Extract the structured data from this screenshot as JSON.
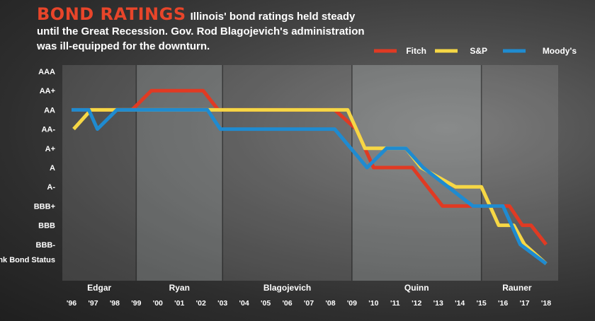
{
  "header": {
    "title": "BOND RATINGS",
    "subtitle": "Illinois' bond ratings held steady until the Great Recession. Gov. Rod Blagojevich's administration was ill-equipped for the downturn."
  },
  "chart_data": {
    "type": "line",
    "title": "BOND RATINGS",
    "y_categories": [
      "AAA",
      "AA+",
      "AA",
      "AA-",
      "A+",
      "A",
      "A-",
      "BBB+",
      "BBB",
      "BBB-",
      "Junk Bond Status"
    ],
    "x_ticks": [
      "'96",
      "'97",
      "'98",
      "'99",
      "'00",
      "'01",
      "'02",
      "'03",
      "'04",
      "'05",
      "'06",
      "'07",
      "'08",
      "'09",
      "'10",
      "'11",
      "'12",
      "'13",
      "'14",
      "'15",
      "'16",
      "'17",
      "'18"
    ],
    "xlim": [
      1996,
      2018.3
    ],
    "ylim_index": [
      0,
      10
    ],
    "governors": [
      {
        "name": "Edgar",
        "start": 1996,
        "end": 1999
      },
      {
        "name": "Ryan",
        "start": 1999,
        "end": 2003
      },
      {
        "name": "Blagojevich",
        "start": 2003,
        "end": 2009
      },
      {
        "name": "Quinn",
        "start": 2009,
        "end": 2015
      },
      {
        "name": "Rauner",
        "start": 2015,
        "end": 2018.3
      }
    ],
    "legend_position": "top-right",
    "series": [
      {
        "name": "Fitch",
        "color": "#e03a23",
        "points": [
          [
            1996,
            2
          ],
          [
            1998.8,
            2
          ],
          [
            1999.7,
            1
          ],
          [
            2002.1,
            1
          ],
          [
            2002.8,
            2
          ],
          [
            2008.2,
            2
          ],
          [
            2009.2,
            3
          ],
          [
            2010,
            5
          ],
          [
            2011.8,
            5
          ],
          [
            2012.5,
            6
          ],
          [
            2013.2,
            7
          ],
          [
            2014.5,
            7
          ],
          [
            2015.3,
            7
          ],
          [
            2016.3,
            7
          ],
          [
            2016.9,
            8
          ],
          [
            2017.3,
            8
          ],
          [
            2018,
            9
          ]
        ]
      },
      {
        "name": "S&P",
        "color": "#f6d745",
        "points": [
          [
            1996.1,
            3
          ],
          [
            1996.9,
            2
          ],
          [
            2008.8,
            2
          ],
          [
            2009.6,
            4
          ],
          [
            2011.5,
            4
          ],
          [
            2012.2,
            5
          ],
          [
            2013.8,
            6
          ],
          [
            2015,
            6
          ],
          [
            2015.8,
            8
          ],
          [
            2016.5,
            8
          ],
          [
            2017,
            9
          ],
          [
            2018,
            10
          ]
        ]
      },
      {
        "name": "Moody's",
        "color": "#1f8bd0",
        "points": [
          [
            1996,
            2
          ],
          [
            1996.8,
            2
          ],
          [
            1997.2,
            3
          ],
          [
            1998.1,
            2
          ],
          [
            2002.3,
            2
          ],
          [
            2002.9,
            3
          ],
          [
            2008.2,
            3
          ],
          [
            2009.7,
            5
          ],
          [
            2010.6,
            4
          ],
          [
            2011.5,
            4
          ],
          [
            2012.3,
            5
          ],
          [
            2014.6,
            7
          ],
          [
            2015.5,
            7
          ],
          [
            2016,
            7
          ],
          [
            2016.8,
            9
          ],
          [
            2018,
            10
          ]
        ]
      }
    ]
  }
}
